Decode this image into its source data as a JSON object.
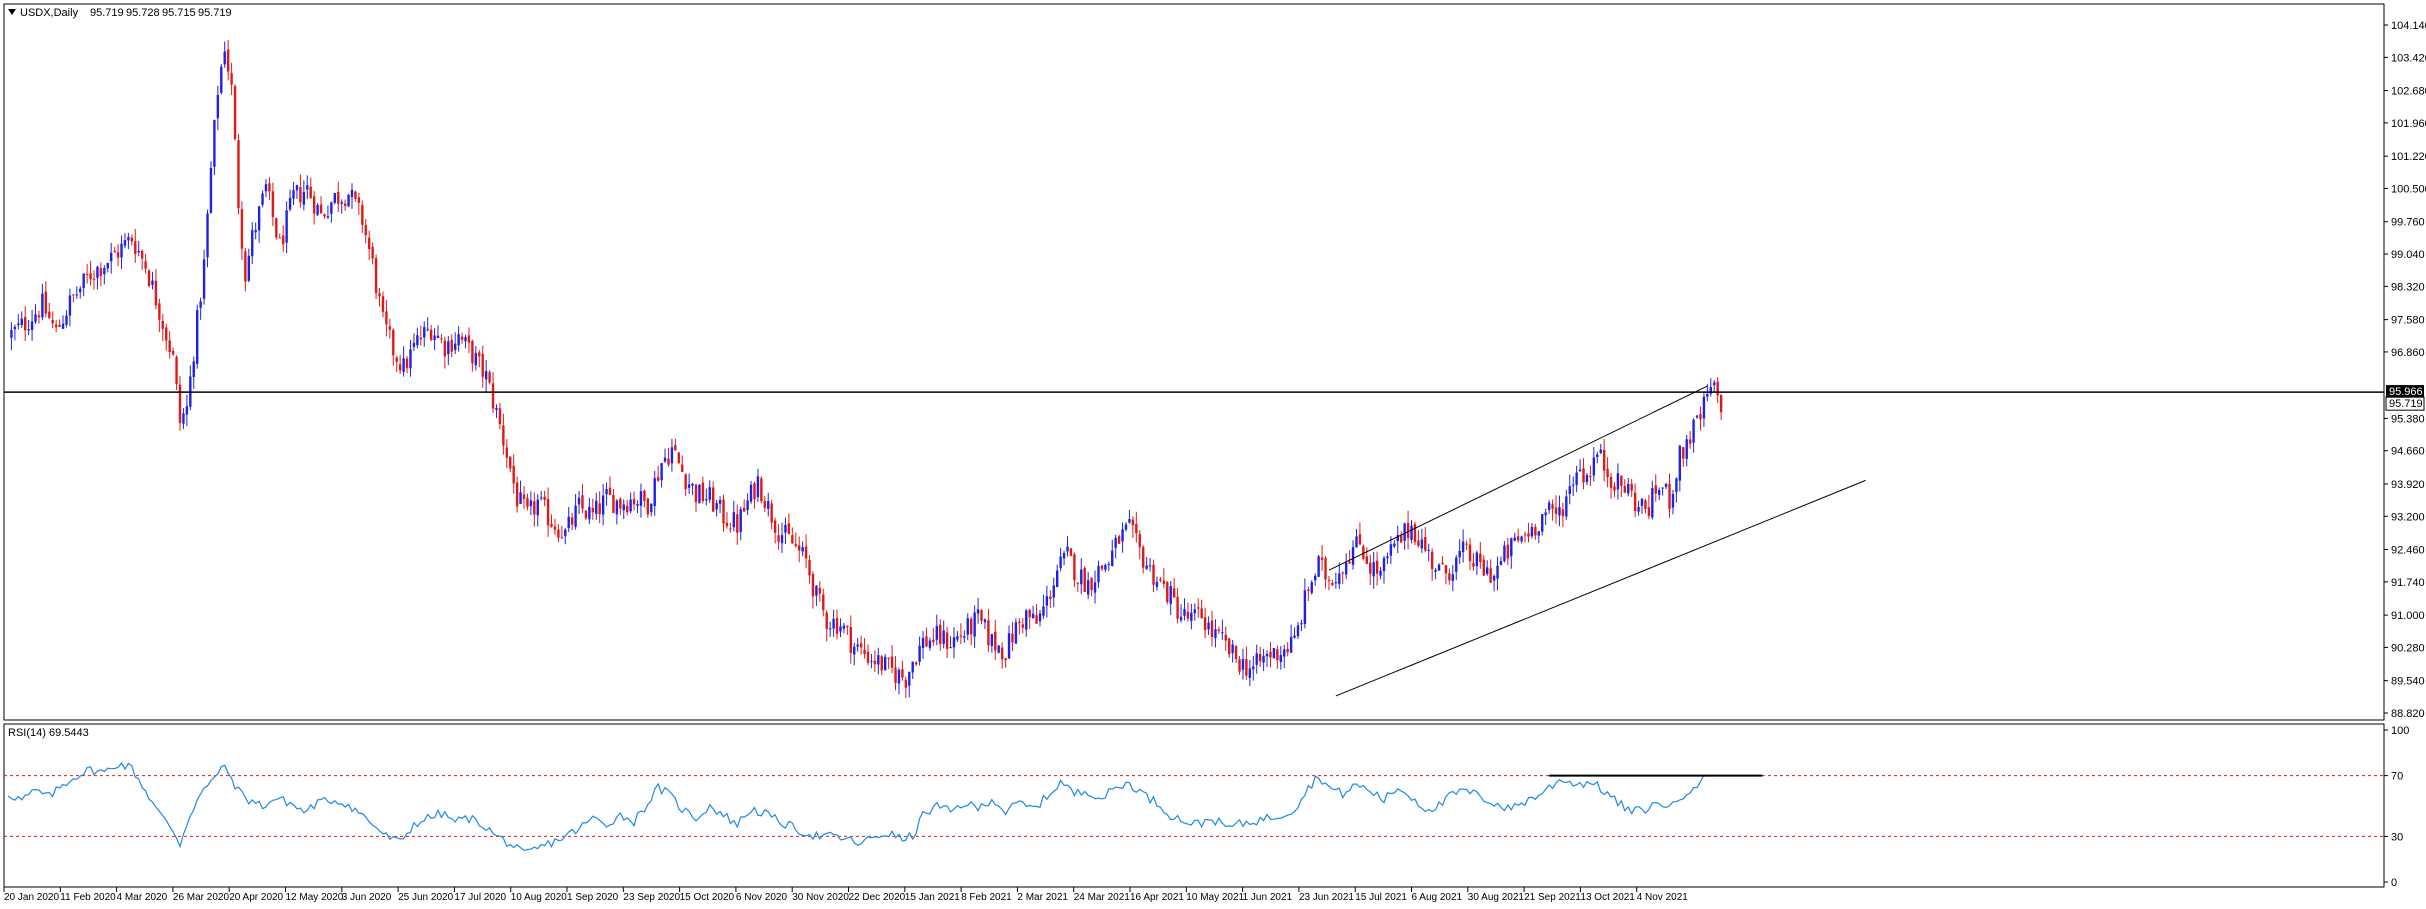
{
  "chart_data": [
    {
      "type": "candlestick",
      "header": {
        "symbol": "USDX,Daily",
        "open": "95.719",
        "high": "95.728",
        "low": "95.715",
        "close": "95.719"
      },
      "x_ticks": [
        "20 Jan 2020",
        "11 Feb 2020",
        "4 Mar 2020",
        "26 Mar 2020",
        "20 Apr 2020",
        "12 May 2020",
        "3 Jun 2020",
        "25 Jun 2020",
        "17 Jul 2020",
        "10 Aug 2020",
        "1 Sep 2020",
        "23 Sep 2020",
        "15 Oct 2020",
        "6 Nov 2020",
        "30 Nov 2020",
        "22 Dec 2020",
        "15 Jan 2021",
        "8 Feb 2021",
        "2 Mar 2021",
        "24 Mar 2021",
        "16 Apr 2021",
        "10 May 2021",
        "1 Jun 2021",
        "23 Jun 2021",
        "15 Jul 2021",
        "6 Aug 2021",
        "30 Aug 2021",
        "21 Sep 2021",
        "13 Oct 2021",
        "4 Nov 2021"
      ],
      "y_ticks": [
        "104.140",
        "103.420",
        "102.680",
        "101.960",
        "101.220",
        "100.500",
        "99.760",
        "99.040",
        "98.320",
        "97.580",
        "96.860",
        "95.380",
        "94.660",
        "93.920",
        "93.200",
        "92.460",
        "91.740",
        "91.000",
        "90.280",
        "89.540",
        "88.820"
      ],
      "ylim": [
        88.82,
        104.14
      ],
      "up_color": "#1e22e6",
      "down_color": "#e01818",
      "close_path": [
        [
          0,
          97.2
        ],
        [
          5,
          97.5
        ],
        [
          10,
          97.9
        ],
        [
          14,
          97.3
        ],
        [
          18,
          97.95
        ],
        [
          24,
          98.6
        ],
        [
          30,
          98.95
        ],
        [
          36,
          99.4
        ],
        [
          40,
          98.8
        ],
        [
          44,
          97.8
        ],
        [
          48,
          96.7
        ],
        [
          50,
          95.3
        ],
        [
          52,
          95.6
        ],
        [
          54,
          96.9
        ],
        [
          57,
          98.8
        ],
        [
          59,
          100.9
        ],
        [
          61,
          102.7
        ],
        [
          63,
          103.7
        ],
        [
          65,
          102.7
        ],
        [
          67,
          100.2
        ],
        [
          69,
          98.6
        ],
        [
          71,
          99.4
        ],
        [
          75,
          100.5
        ],
        [
          79,
          99.2
        ],
        [
          83,
          100.3
        ],
        [
          87,
          100.5
        ],
        [
          91,
          99.9
        ],
        [
          95,
          100.3
        ],
        [
          99,
          100.4
        ],
        [
          103,
          99.8
        ],
        [
          106,
          98.8
        ],
        [
          109,
          97.5
        ],
        [
          112,
          96.9
        ],
        [
          115,
          96.5
        ],
        [
          119,
          97.1
        ],
        [
          123,
          97.4
        ],
        [
          127,
          97.0
        ],
        [
          131,
          97.2
        ],
        [
          135,
          96.8
        ],
        [
          139,
          96.3
        ],
        [
          142,
          95.5
        ],
        [
          145,
          94.6
        ],
        [
          148,
          93.6
        ],
        [
          151,
          93.2
        ],
        [
          154,
          93.5
        ],
        [
          158,
          93.1
        ],
        [
          162,
          92.8
        ],
        [
          166,
          93.4
        ],
        [
          170,
          93.2
        ],
        [
          174,
          93.6
        ],
        [
          178,
          93.5
        ],
        [
          182,
          93.6
        ],
        [
          186,
          93.5
        ],
        [
          190,
          94.4
        ],
        [
          193,
          94.7
        ],
        [
          196,
          94.2
        ],
        [
          200,
          93.7
        ],
        [
          204,
          93.6
        ],
        [
          208,
          93.2
        ],
        [
          212,
          93.0
        ],
        [
          215,
          93.5
        ],
        [
          218,
          94.0
        ],
        [
          221,
          93.4
        ],
        [
          224,
          92.9
        ],
        [
          228,
          92.6
        ],
        [
          232,
          92.2
        ],
        [
          235,
          91.4
        ],
        [
          238,
          90.9
        ],
        [
          242,
          90.8
        ],
        [
          246,
          90.3
        ],
        [
          250,
          90.1
        ],
        [
          254,
          89.9
        ],
        [
          258,
          89.7
        ],
        [
          261,
          89.6
        ],
        [
          263,
          90.0
        ],
        [
          266,
          90.4
        ],
        [
          270,
          90.5
        ],
        [
          274,
          90.4
        ],
        [
          278,
          90.6
        ],
        [
          282,
          90.9
        ],
        [
          286,
          90.4
        ],
        [
          290,
          90.2
        ],
        [
          293,
          90.7
        ],
        [
          296,
          91.0
        ],
        [
          299,
          90.8
        ],
        [
          302,
          91.3
        ],
        [
          305,
          92.0
        ],
        [
          308,
          92.3
        ],
        [
          311,
          91.9
        ],
        [
          314,
          91.7
        ],
        [
          317,
          92.0
        ],
        [
          320,
          92.2
        ],
        [
          323,
          92.7
        ],
        [
          326,
          92.9
        ],
        [
          329,
          92.4
        ],
        [
          332,
          92.0
        ],
        [
          335,
          91.7
        ],
        [
          338,
          91.4
        ],
        [
          341,
          91.0
        ],
        [
          344,
          90.9
        ],
        [
          347,
          91.0
        ],
        [
          350,
          90.6
        ],
        [
          353,
          90.4
        ],
        [
          356,
          90.1
        ],
        [
          359,
          89.9
        ],
        [
          362,
          89.8
        ],
        [
          366,
          90.1
        ],
        [
          370,
          90.2
        ],
        [
          374,
          90.4
        ],
        [
          378,
          91.6
        ],
        [
          381,
          92.1
        ],
        [
          384,
          91.8
        ],
        [
          387,
          92.0
        ],
        [
          390,
          92.4
        ],
        [
          393,
          92.6
        ],
        [
          396,
          92.1
        ],
        [
          399,
          91.9
        ],
        [
          402,
          92.4
        ],
        [
          405,
          92.7
        ],
        [
          408,
          93.0
        ],
        [
          411,
          92.6
        ],
        [
          414,
          92.2
        ],
        [
          417,
          91.9
        ],
        [
          420,
          92.1
        ],
        [
          423,
          92.4
        ],
        [
          426,
          92.2
        ],
        [
          429,
          92.0
        ],
        [
          432,
          91.9
        ],
        [
          435,
          92.3
        ],
        [
          438,
          92.6
        ],
        [
          441,
          92.8
        ],
        [
          444,
          93.0
        ],
        [
          447,
          93.3
        ],
        [
          450,
          93.2
        ],
        [
          453,
          93.6
        ],
        [
          456,
          94.3
        ],
        [
          459,
          94.1
        ],
        [
          462,
          94.6
        ],
        [
          465,
          94.2
        ],
        [
          468,
          93.9
        ],
        [
          471,
          93.8
        ],
        [
          474,
          93.4
        ],
        [
          477,
          93.4
        ],
        [
          480,
          93.9
        ],
        [
          483,
          93.6
        ],
        [
          486,
          94.5
        ],
        [
          489,
          95.0
        ],
        [
          492,
          95.4
        ],
        [
          494,
          95.9
        ],
        [
          496,
          96.0
        ],
        [
          498,
          95.72
        ]
      ],
      "channel": {
        "upper": [
          [
            384,
            92.0
          ],
          [
            494,
            96.1
          ]
        ],
        "lower": [
          [
            386,
            89.2
          ],
          [
            540,
            94.0
          ]
        ]
      },
      "resistance_level": 95.966,
      "current_price_label": "95.719",
      "resistance_label": "95.966"
    },
    {
      "type": "line",
      "title": "RSI(14) 69.5443",
      "y_ticks": [
        "100",
        "70",
        "30",
        "0"
      ],
      "ylim": [
        0,
        100
      ],
      "levels": [
        70,
        30
      ],
      "line_color": "#1e88e5",
      "level_color": "#e01818",
      "values": [
        [
          0,
          58
        ],
        [
          4,
          54
        ],
        [
          8,
          60
        ],
        [
          12,
          56
        ],
        [
          16,
          64
        ],
        [
          20,
          70
        ],
        [
          24,
          74
        ],
        [
          28,
          72
        ],
        [
          32,
          78
        ],
        [
          36,
          75
        ],
        [
          40,
          60
        ],
        [
          44,
          45
        ],
        [
          48,
          34
        ],
        [
          50,
          25
        ],
        [
          53,
          45
        ],
        [
          56,
          58
        ],
        [
          59,
          65
        ],
        [
          62,
          76
        ],
        [
          64,
          72
        ],
        [
          67,
          60
        ],
        [
          70,
          54
        ],
        [
          74,
          50
        ],
        [
          78,
          55
        ],
        [
          82,
          52
        ],
        [
          86,
          46
        ],
        [
          90,
          52
        ],
        [
          94,
          54
        ],
        [
          98,
          52
        ],
        [
          102,
          46
        ],
        [
          106,
          38
        ],
        [
          110,
          30
        ],
        [
          114,
          26
        ],
        [
          118,
          38
        ],
        [
          122,
          42
        ],
        [
          126,
          45
        ],
        [
          130,
          40
        ],
        [
          134,
          42
        ],
        [
          138,
          38
        ],
        [
          142,
          30
        ],
        [
          146,
          25
        ],
        [
          150,
          18
        ],
        [
          154,
          22
        ],
        [
          158,
          26
        ],
        [
          162,
          30
        ],
        [
          166,
          35
        ],
        [
          170,
          42
        ],
        [
          174,
          38
        ],
        [
          178,
          44
        ],
        [
          182,
          40
        ],
        [
          186,
          52
        ],
        [
          189,
          62
        ],
        [
          192,
          58
        ],
        [
          196,
          48
        ],
        [
          200,
          42
        ],
        [
          204,
          50
        ],
        [
          208,
          44
        ],
        [
          212,
          38
        ],
        [
          216,
          48
        ],
        [
          220,
          45
        ],
        [
          224,
          40
        ],
        [
          228,
          36
        ],
        [
          232,
          32
        ],
        [
          236,
          30
        ],
        [
          240,
          30
        ],
        [
          244,
          28
        ],
        [
          248,
          25
        ],
        [
          252,
          30
        ],
        [
          256,
          32
        ],
        [
          260,
          28
        ],
        [
          263,
          30
        ],
        [
          266,
          44
        ],
        [
          270,
          50
        ],
        [
          274,
          46
        ],
        [
          278,
          52
        ],
        [
          282,
          48
        ],
        [
          286,
          55
        ],
        [
          290,
          46
        ],
        [
          294,
          52
        ],
        [
          298,
          48
        ],
        [
          302,
          56
        ],
        [
          306,
          66
        ],
        [
          310,
          58
        ],
        [
          314,
          60
        ],
        [
          318,
          55
        ],
        [
          322,
          62
        ],
        [
          326,
          65
        ],
        [
          330,
          58
        ],
        [
          334,
          52
        ],
        [
          338,
          44
        ],
        [
          342,
          40
        ],
        [
          346,
          38
        ],
        [
          350,
          42
        ],
        [
          354,
          36
        ],
        [
          358,
          38
        ],
        [
          362,
          40
        ],
        [
          366,
          42
        ],
        [
          370,
          44
        ],
        [
          374,
          48
        ],
        [
          378,
          62
        ],
        [
          381,
          70
        ],
        [
          384,
          62
        ],
        [
          388,
          58
        ],
        [
          392,
          64
        ],
        [
          396,
          60
        ],
        [
          400,
          54
        ],
        [
          404,
          62
        ],
        [
          408,
          56
        ],
        [
          412,
          48
        ],
        [
          416,
          50
        ],
        [
          420,
          58
        ],
        [
          424,
          60
        ],
        [
          428,
          56
        ],
        [
          432,
          52
        ],
        [
          436,
          48
        ],
        [
          440,
          52
        ],
        [
          444,
          56
        ],
        [
          448,
          62
        ],
        [
          452,
          68
        ],
        [
          456,
          64
        ],
        [
          460,
          66
        ],
        [
          464,
          60
        ],
        [
          468,
          52
        ],
        [
          472,
          46
        ],
        [
          476,
          48
        ],
        [
          480,
          52
        ],
        [
          484,
          50
        ],
        [
          488,
          60
        ],
        [
          492,
          66
        ],
        [
          494,
          69.5
        ]
      ],
      "marked_level": {
        "from": 448,
        "to": 510,
        "value": 70
      }
    }
  ]
}
